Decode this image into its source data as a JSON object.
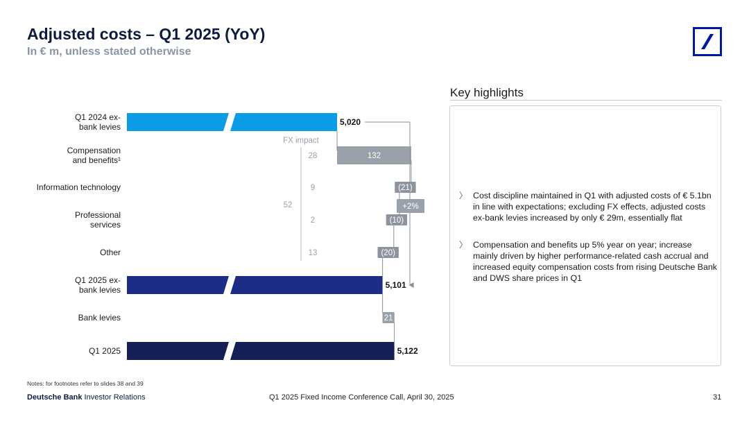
{
  "header": {
    "title": "Adjusted costs – Q1 2025 (YoY)",
    "subtitle": "In € m, unless stated otherwise"
  },
  "key_highlights": {
    "title": "Key highlights",
    "bullets": [
      "Cost discipline maintained in Q1 with adjusted costs of € 5.1bn in line with expectations; excluding FX effects, adjusted costs ex-bank levies increased by only € 29m, essentially flat",
      "Compensation and benefits up 5% year on year; increase mainly driven by higher performance-related cash accrual and increased equity compensation costs from rising Deutsche Bank and DWS share prices in Q1"
    ]
  },
  "chart_data": {
    "type": "bar",
    "subtype": "waterfall",
    "categories": [
      "Q1 2024 ex-bank levies",
      "Compensation and benefits¹",
      "Information technology",
      "Professional services",
      "Other",
      "Q1 2025 ex-bank levies",
      "Bank levies",
      "Q1 2025"
    ],
    "category_lines": [
      [
        "Q1 2024 ex-",
        "bank levies"
      ],
      [
        "Compensation",
        "and benefits¹"
      ],
      [
        "Information technology"
      ],
      [
        "Professional",
        "services"
      ],
      [
        "Other"
      ],
      [
        "Q1 2025 ex-",
        "bank levies"
      ],
      [
        "Bank levies"
      ],
      [
        "Q1 2025"
      ]
    ],
    "values": [
      5020,
      132,
      -21,
      -10,
      -20,
      5101,
      21,
      5122
    ],
    "bar_kinds": [
      "total",
      "delta",
      "delta",
      "delta",
      "delta",
      "total",
      "delta",
      "total"
    ],
    "value_labels": [
      "5,020",
      "132",
      "(21)",
      "(10)",
      "(20)",
      "5,101",
      "21",
      "5,122"
    ],
    "fx_impact": {
      "label": "FX impact",
      "values": [
        "28",
        "9",
        "2",
        "13"
      ],
      "total": "52"
    },
    "change_annotation": "+2%",
    "axis_break": true,
    "colors": {
      "q1_2024": "#0a9de5",
      "q1_2025_ex": "#1b2d84",
      "q1_2025": "#141f55",
      "increase": "#9aa1ab",
      "decrease": "#8d949e",
      "connector": "#8a9099"
    }
  },
  "footer": {
    "notes": "Notes: for footnotes refer to slides 38 and 39",
    "brand_bold": "Deutsche Bank",
    "brand_rest": " Investor Relations",
    "event": "Q1 2025 Fixed Income Conference Call, April 30, 2025",
    "page": "31"
  }
}
